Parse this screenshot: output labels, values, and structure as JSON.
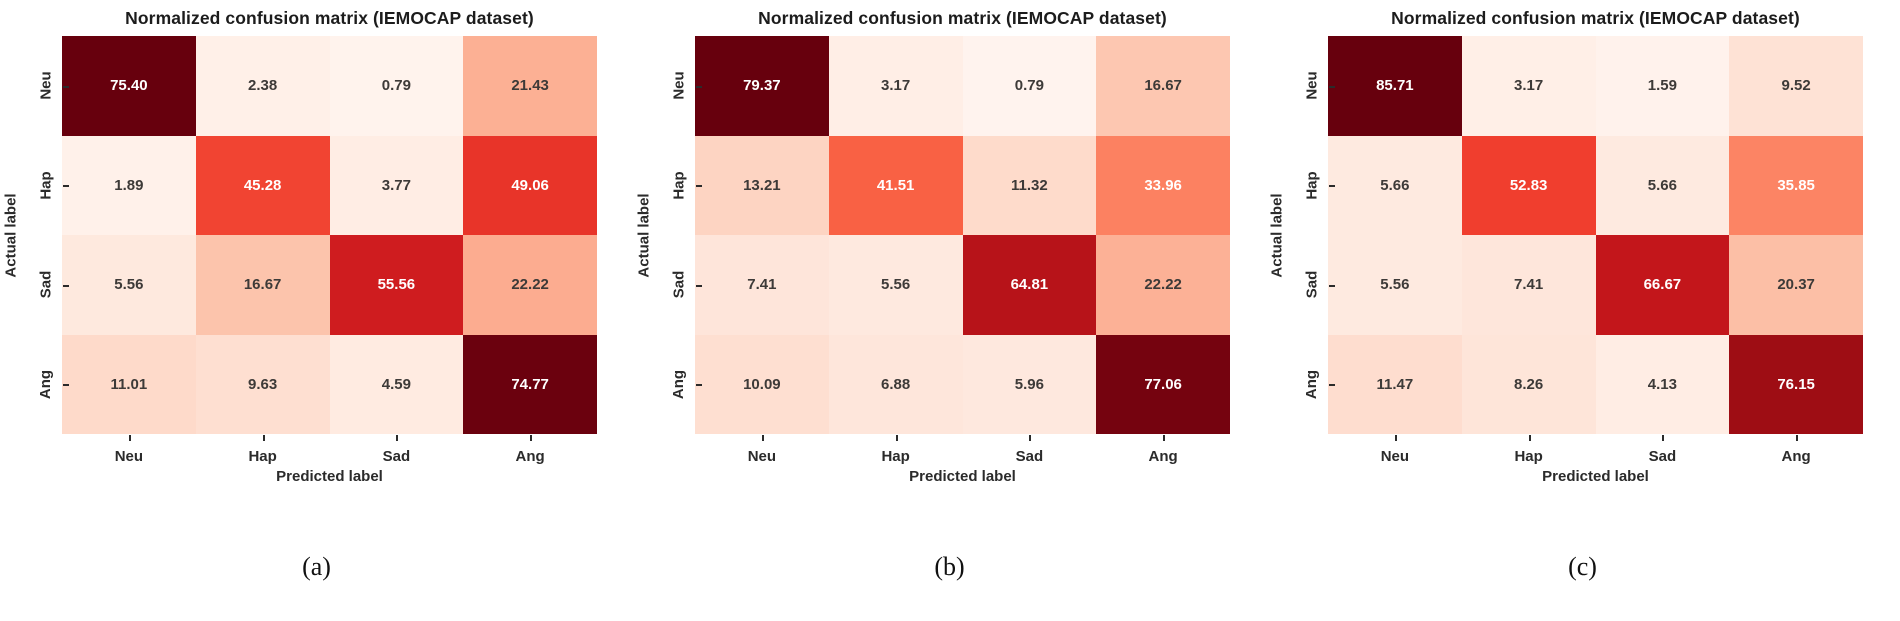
{
  "figure": {
    "shared_title": "Normalized confusion matrix (IEMOCAP dataset)",
    "x_axis_label": "Predicted label",
    "y_axis_label": "Actual label",
    "class_labels": [
      "Neu",
      "Hap",
      "Sad",
      "Ang"
    ],
    "colors": {
      "colormap": "Reds",
      "cmap_low": "#fff5f0",
      "cmap_high": "#67000d",
      "dark_text": "#3d3a38",
      "light_text": "#ffffff",
      "axis_text": "#2b2b2b"
    }
  },
  "chart_data": [
    {
      "type": "heatmap",
      "title": "Normalized confusion matrix (IEMOCAP dataset)",
      "caption": "(a)",
      "xlabel": "Predicted label",
      "ylabel": "Actual label",
      "x_categories": [
        "Neu",
        "Hap",
        "Sad",
        "Ang"
      ],
      "y_categories": [
        "Neu",
        "Hap",
        "Sad",
        "Ang"
      ],
      "values": [
        [
          75.4,
          2.38,
          0.79,
          21.43
        ],
        [
          1.89,
          45.28,
          3.77,
          49.06
        ],
        [
          5.56,
          16.67,
          55.56,
          22.22
        ],
        [
          11.01,
          9.63,
          4.59,
          74.77
        ]
      ],
      "colormap": "Reds",
      "legend": "none",
      "grid": "off"
    },
    {
      "type": "heatmap",
      "title": "Normalized confusion matrix (IEMOCAP dataset)",
      "caption": "(b)",
      "xlabel": "Predicted label",
      "ylabel": "Actual label",
      "x_categories": [
        "Neu",
        "Hap",
        "Sad",
        "Ang"
      ],
      "y_categories": [
        "Neu",
        "Hap",
        "Sad",
        "Ang"
      ],
      "values": [
        [
          79.37,
          3.17,
          0.79,
          16.67
        ],
        [
          13.21,
          41.51,
          11.32,
          33.96
        ],
        [
          7.41,
          5.56,
          64.81,
          22.22
        ],
        [
          10.09,
          6.88,
          5.96,
          77.06
        ]
      ],
      "colormap": "Reds",
      "legend": "none",
      "grid": "off"
    },
    {
      "type": "heatmap",
      "title": "Normalized confusion matrix (IEMOCAP dataset)",
      "caption": "(c)",
      "xlabel": "Predicted label",
      "ylabel": "Actual label",
      "x_categories": [
        "Neu",
        "Hap",
        "Sad",
        "Ang"
      ],
      "y_categories": [
        "Neu",
        "Hap",
        "Sad",
        "Ang"
      ],
      "values": [
        [
          85.71,
          3.17,
          1.59,
          9.52
        ],
        [
          5.66,
          52.83,
          5.66,
          35.85
        ],
        [
          5.56,
          7.41,
          66.67,
          20.37
        ],
        [
          11.47,
          8.26,
          4.13,
          76.15
        ]
      ],
      "colormap": "Reds",
      "legend": "none",
      "grid": "off"
    }
  ]
}
